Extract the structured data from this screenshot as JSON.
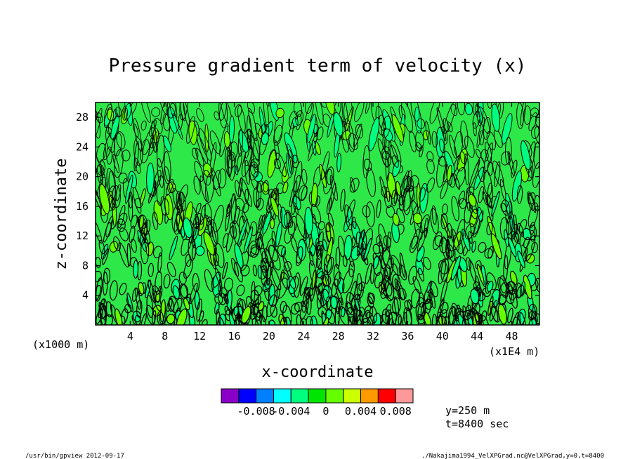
{
  "chart_data": {
    "type": "heatmap",
    "title": "Pressure gradient term of velocity (x)",
    "xlabel": "x-coordinate",
    "ylabel": "z-coordinate",
    "xlim": [
      0,
      51.2
    ],
    "ylim": [
      0,
      30
    ],
    "x_ticks": [
      "4",
      "8",
      "12",
      "16",
      "20",
      "24",
      "28",
      "32",
      "36",
      "40",
      "44",
      "48"
    ],
    "y_ticks": [
      "4",
      "8",
      "12",
      "16",
      "20",
      "24",
      "28"
    ],
    "x_unit": "(x1E4 m)",
    "y_unit": "(x1000 m)",
    "colorbar": {
      "colors": [
        "#8a00c8",
        "#0000ff",
        "#0080ff",
        "#00ffff",
        "#00ff7f",
        "#00e600",
        "#66ff00",
        "#ccff00",
        "#ff9900",
        "#ff0000",
        "#ff9999"
      ],
      "labels": [
        "-0.008",
        "-0.004",
        "0",
        "0.004",
        "0.008"
      ],
      "label_values": [
        -0.008,
        -0.004,
        0,
        0.004,
        0.008
      ]
    },
    "annotations": [
      "y=250 m",
      "t=8400 sec"
    ]
  },
  "footer": {
    "left": "/usr/bin/gpview 2012-09-17",
    "right": "./Nakajima1994_VelXPGrad.nc@VelXPGrad,y=0,t=8400"
  }
}
